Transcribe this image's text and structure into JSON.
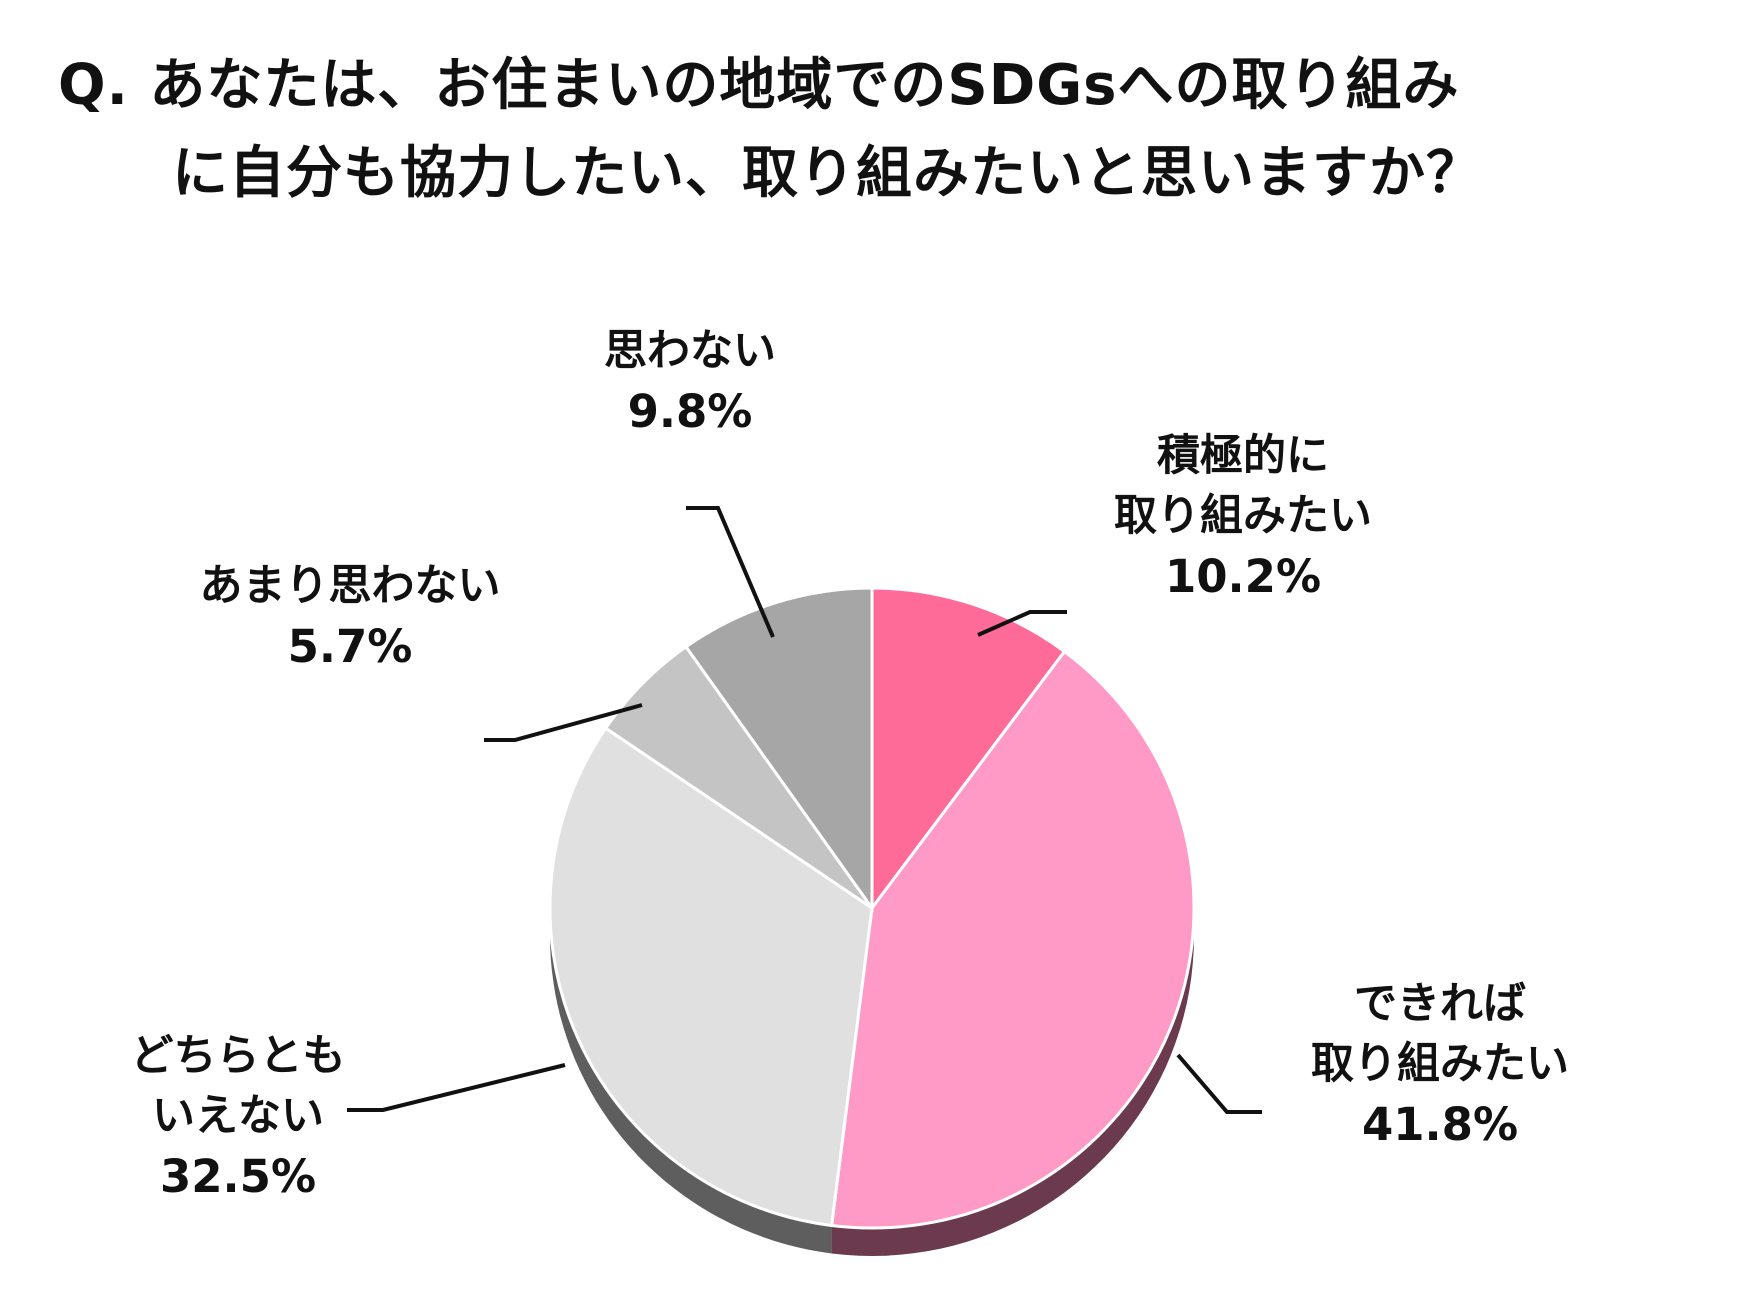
{
  "chart_data": {
    "type": "pie",
    "title_lines": [
      "Q. あなたは、お住まいの地域でのSDGsへの取り組み",
      "に自分も協力したい、取り組みたいと思いますか？"
    ],
    "slices": [
      {
        "label_lines": [
          "積極的に",
          "取り組みたい"
        ],
        "value": 10.2,
        "value_label": "10.2%",
        "color": "#ff6b98",
        "side": "#8a3a52"
      },
      {
        "label_lines": [
          "できれば",
          "取り組みたい"
        ],
        "value": 41.8,
        "value_label": "41.8%",
        "color": "#ff9ac6",
        "side": "#6b3a4e"
      },
      {
        "label_lines": [
          "どちらとも",
          "いえない"
        ],
        "value": 32.5,
        "value_label": "32.5%",
        "color": "#e0e0e0",
        "side": "#5e5e5e"
      },
      {
        "label_lines": [
          "あまり思わない"
        ],
        "value": 5.7,
        "value_label": "5.7%",
        "color": "#c4c4c4",
        "side": "#555555"
      },
      {
        "label_lines": [
          "思わない"
        ],
        "value": 9.8,
        "value_label": "9.8%",
        "color": "#a6a6a6",
        "side": "#4a4a4a"
      }
    ],
    "start": "12 o'clock",
    "direction": "clockwise",
    "style": "3d"
  }
}
